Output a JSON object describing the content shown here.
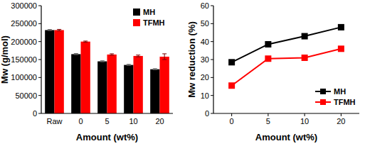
{
  "chart_data": [
    {
      "type": "bar",
      "x_label": "Amount (wt%)",
      "y_label": "Mw  (g/mol)",
      "categories": [
        "Raw",
        "0",
        "5",
        "10",
        "20"
      ],
      "series": [
        {
          "name": "MH",
          "color": "#000000",
          "values": [
            232000,
            165000,
            145000,
            135000,
            123000
          ],
          "errors": [
            1500,
            1500,
            1500,
            1500,
            1500
          ]
        },
        {
          "name": "TFMH",
          "color": "#ff0000",
          "values": [
            232000,
            200000,
            164000,
            160000,
            158000
          ],
          "errors": [
            2000,
            1500,
            2000,
            2500,
            8000
          ]
        }
      ],
      "ylim": [
        0,
        300000
      ],
      "yticks": [
        0,
        50000,
        100000,
        150000,
        200000,
        250000,
        300000
      ],
      "legend": "upper right",
      "grid": false
    },
    {
      "type": "line",
      "x_label": "Amount (wt%)",
      "y_label": "Mw reduction (%)",
      "categories": [
        "0",
        "5",
        "10",
        "20"
      ],
      "series": [
        {
          "name": "MH",
          "color": "#000000",
          "marker": "square",
          "values": [
            28.5,
            38.5,
            43,
            48
          ]
        },
        {
          "name": "TFMH",
          "color": "#ff0000",
          "marker": "square",
          "values": [
            15.5,
            30.5,
            31,
            36
          ]
        }
      ],
      "ylim": [
        0,
        60
      ],
      "yticks": [
        0,
        10,
        20,
        30,
        40,
        50,
        60
      ],
      "legend": "lower right",
      "grid": false
    }
  ]
}
